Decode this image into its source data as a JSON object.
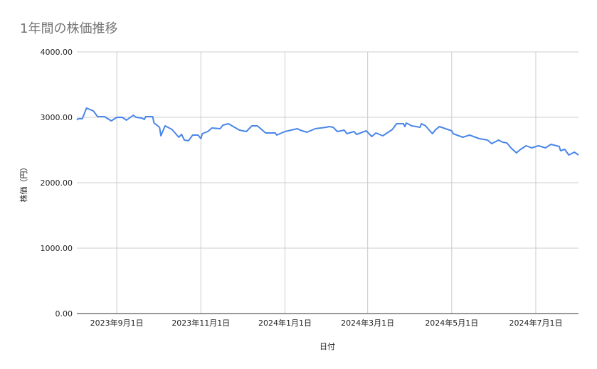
{
  "chart_data": {
    "type": "line",
    "title": "1年間の株価推移",
    "xlabel": "日付",
    "ylabel": "株価（円）",
    "xlim": [
      "2023-08-03",
      "2024-08-01"
    ],
    "ylim": [
      0,
      4000
    ],
    "yticks": [
      0,
      1000,
      2000,
      3000,
      4000
    ],
    "ytick_labels": [
      "0.00",
      "1000.00",
      "2000.00",
      "3000.00",
      "4000.00"
    ],
    "xticks": [
      "2023-09-01",
      "2023-11-01",
      "2024-01-01",
      "2024-03-01",
      "2024-05-01",
      "2024-07-01"
    ],
    "xtick_labels": [
      "2023年9月1日",
      "2023年11月1日",
      "2024年1月1日",
      "2024年3月1日",
      "2024年5月1日",
      "2024年7月1日"
    ],
    "grid": true,
    "legend": "none",
    "series": [
      {
        "color": "#4a86e8",
        "points": [
          [
            "2023-08-03",
            2960
          ],
          [
            "2023-08-04",
            2978
          ],
          [
            "2023-08-07",
            2978
          ],
          [
            "2023-08-10",
            3141
          ],
          [
            "2023-08-15",
            3098
          ],
          [
            "2023-08-18",
            3011
          ],
          [
            "2023-08-23",
            3011
          ],
          [
            "2023-08-28",
            2946
          ],
          [
            "2023-09-01",
            3000
          ],
          [
            "2023-09-05",
            3000
          ],
          [
            "2023-09-08",
            2957
          ],
          [
            "2023-09-13",
            3033
          ],
          [
            "2023-09-15",
            3000
          ],
          [
            "2023-09-19",
            2989
          ],
          [
            "2023-09-21",
            2967
          ],
          [
            "2023-09-22",
            3011
          ],
          [
            "2023-09-27",
            3011
          ],
          [
            "2023-09-28",
            2913
          ],
          [
            "2023-10-02",
            2848
          ],
          [
            "2023-10-03",
            2717
          ],
          [
            "2023-10-06",
            2870
          ],
          [
            "2023-10-11",
            2815
          ],
          [
            "2023-10-16",
            2696
          ],
          [
            "2023-10-18",
            2739
          ],
          [
            "2023-10-20",
            2652
          ],
          [
            "2023-10-23",
            2641
          ],
          [
            "2023-10-26",
            2728
          ],
          [
            "2023-10-30",
            2728
          ],
          [
            "2023-11-01",
            2674
          ],
          [
            "2023-11-02",
            2750
          ],
          [
            "2023-11-06",
            2783
          ],
          [
            "2023-11-09",
            2837
          ],
          [
            "2023-11-15",
            2826
          ],
          [
            "2023-11-17",
            2880
          ],
          [
            "2023-11-21",
            2902
          ],
          [
            "2023-11-29",
            2804
          ],
          [
            "2023-12-04",
            2783
          ],
          [
            "2023-12-08",
            2870
          ],
          [
            "2023-12-12",
            2870
          ],
          [
            "2023-12-18",
            2761
          ],
          [
            "2023-12-25",
            2761
          ],
          [
            "2023-12-26",
            2728
          ],
          [
            "2024-01-01",
            2783
          ],
          [
            "2024-01-10",
            2826
          ],
          [
            "2024-01-12",
            2804
          ],
          [
            "2024-01-17",
            2772
          ],
          [
            "2024-01-23",
            2826
          ],
          [
            "2024-01-31",
            2848
          ],
          [
            "2024-02-02",
            2859
          ],
          [
            "2024-02-05",
            2848
          ],
          [
            "2024-02-08",
            2783
          ],
          [
            "2024-02-13",
            2804
          ],
          [
            "2024-02-15",
            2750
          ],
          [
            "2024-02-20",
            2783
          ],
          [
            "2024-02-22",
            2739
          ],
          [
            "2024-02-29",
            2793
          ],
          [
            "2024-03-04",
            2707
          ],
          [
            "2024-03-07",
            2761
          ],
          [
            "2024-03-12",
            2717
          ],
          [
            "2024-03-19",
            2815
          ],
          [
            "2024-03-22",
            2902
          ],
          [
            "2024-03-27",
            2902
          ],
          [
            "2024-03-28",
            2859
          ],
          [
            "2024-03-29",
            2913
          ],
          [
            "2024-04-02",
            2870
          ],
          [
            "2024-04-08",
            2848
          ],
          [
            "2024-04-09",
            2902
          ],
          [
            "2024-04-12",
            2870
          ],
          [
            "2024-04-17",
            2750
          ],
          [
            "2024-04-19",
            2804
          ],
          [
            "2024-04-22",
            2859
          ],
          [
            "2024-05-01",
            2793
          ],
          [
            "2024-05-02",
            2750
          ],
          [
            "2024-05-09",
            2696
          ],
          [
            "2024-05-14",
            2728
          ],
          [
            "2024-05-21",
            2674
          ],
          [
            "2024-05-27",
            2652
          ],
          [
            "2024-05-30",
            2598
          ],
          [
            "2024-06-03",
            2641
          ],
          [
            "2024-06-04",
            2652
          ],
          [
            "2024-06-07",
            2620
          ],
          [
            "2024-06-10",
            2609
          ],
          [
            "2024-06-13",
            2533
          ],
          [
            "2024-06-17",
            2457
          ],
          [
            "2024-06-20",
            2511
          ],
          [
            "2024-06-24",
            2565
          ],
          [
            "2024-06-28",
            2533
          ],
          [
            "2024-07-03",
            2565
          ],
          [
            "2024-07-08",
            2533
          ],
          [
            "2024-07-12",
            2587
          ],
          [
            "2024-07-18",
            2554
          ],
          [
            "2024-07-19",
            2489
          ],
          [
            "2024-07-22",
            2511
          ],
          [
            "2024-07-25",
            2424
          ],
          [
            "2024-07-29",
            2467
          ],
          [
            "2024-08-01",
            2424
          ]
        ]
      }
    ]
  }
}
